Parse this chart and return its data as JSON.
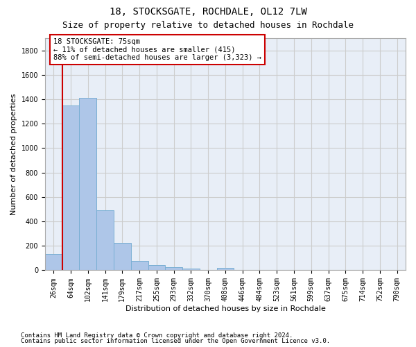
{
  "title": "18, STOCKSGATE, ROCHDALE, OL12 7LW",
  "subtitle": "Size of property relative to detached houses in Rochdale",
  "xlabel": "Distribution of detached houses by size in Rochdale",
  "ylabel": "Number of detached properties",
  "bar_labels": [
    "26sqm",
    "64sqm",
    "102sqm",
    "141sqm",
    "179sqm",
    "217sqm",
    "255sqm",
    "293sqm",
    "332sqm",
    "370sqm",
    "408sqm",
    "446sqm",
    "484sqm",
    "523sqm",
    "561sqm",
    "599sqm",
    "637sqm",
    "675sqm",
    "714sqm",
    "752sqm",
    "790sqm"
  ],
  "bar_values": [
    135,
    1350,
    1410,
    490,
    225,
    75,
    45,
    28,
    15,
    5,
    20,
    0,
    0,
    0,
    0,
    0,
    0,
    0,
    0,
    0,
    0
  ],
  "bar_color": "#aec6e8",
  "bar_edge_color": "#7aafd4",
  "grid_color": "#cccccc",
  "bg_color": "#e8eef7",
  "vline_color": "#cc0000",
  "annotation_box_text": "18 STOCKSGATE: 75sqm\n← 11% of detached houses are smaller (415)\n88% of semi-detached houses are larger (3,323) →",
  "annotation_box_color": "#cc0000",
  "ylim": [
    0,
    1900
  ],
  "yticks": [
    0,
    200,
    400,
    600,
    800,
    1000,
    1200,
    1400,
    1600,
    1800
  ],
  "footer_line1": "Contains HM Land Registry data © Crown copyright and database right 2024.",
  "footer_line2": "Contains public sector information licensed under the Open Government Licence v3.0.",
  "title_fontsize": 10,
  "subtitle_fontsize": 9,
  "label_fontsize": 8,
  "tick_fontsize": 7,
  "annotation_fontsize": 7.5,
  "footer_fontsize": 6.5
}
